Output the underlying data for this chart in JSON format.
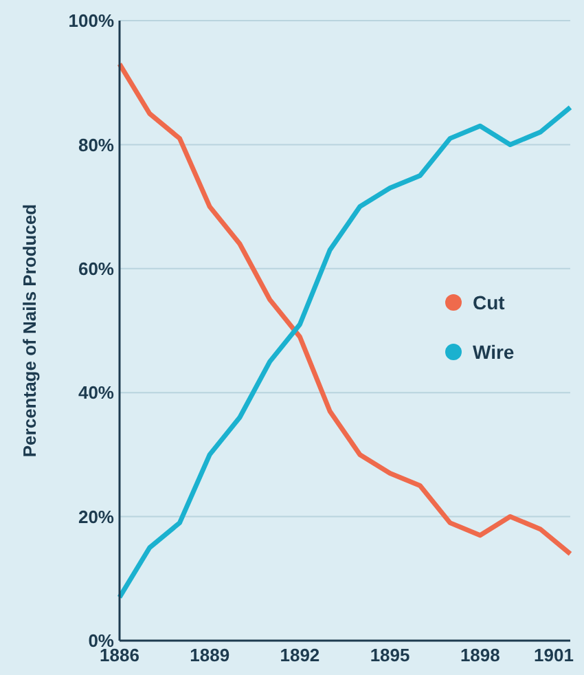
{
  "chart_data": {
    "type": "line",
    "ylabel": "Percentage of Nails Produced",
    "x": [
      1886,
      1887,
      1888,
      1889,
      1890,
      1891,
      1892,
      1893,
      1894,
      1895,
      1896,
      1897,
      1898,
      1899,
      1900,
      1901
    ],
    "series": [
      {
        "name": "Cut",
        "color": "#ef6a4c",
        "values": [
          93,
          85,
          81,
          70,
          64,
          55,
          49,
          37,
          30,
          27,
          25,
          19,
          17,
          20,
          18,
          14
        ]
      },
      {
        "name": "Wire",
        "color": "#1bb1cf",
        "values": [
          7,
          15,
          19,
          30,
          36,
          45,
          51,
          63,
          70,
          73,
          75,
          81,
          83,
          80,
          82,
          86
        ]
      }
    ],
    "xlim": [
      1886,
      1901
    ],
    "xticks": [
      1886,
      1889,
      1892,
      1895,
      1898,
      1901
    ],
    "ylim": [
      0,
      100
    ],
    "yticks": [
      {
        "value": 0,
        "label": "0%"
      },
      {
        "value": 20,
        "label": "20%"
      },
      {
        "value": 40,
        "label": "40%"
      },
      {
        "value": 60,
        "label": "60%"
      },
      {
        "value": 80,
        "label": "80%"
      },
      {
        "value": 100,
        "label": "100%"
      }
    ],
    "grid": "y",
    "legend": "right",
    "marker": "none",
    "line_style": "solid"
  }
}
